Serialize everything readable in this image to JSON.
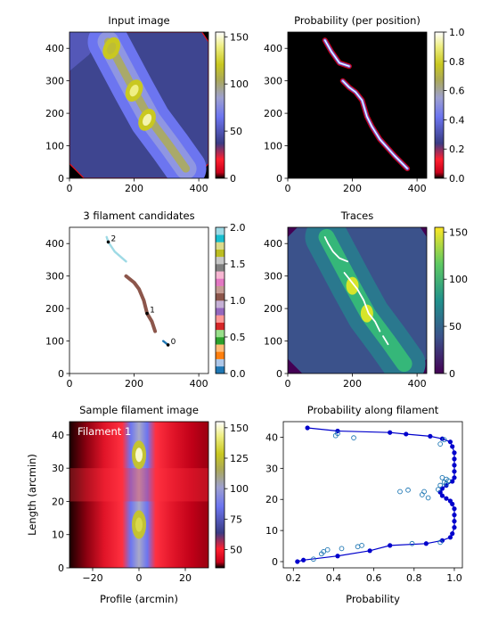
{
  "chart_data": [
    {
      "type": "heatmap",
      "title": "Input image",
      "xlim": [
        0,
        430
      ],
      "ylim": [
        0,
        450
      ],
      "xticks": [
        0,
        200,
        400
      ],
      "yticks": [
        0,
        100,
        200,
        300,
        400
      ],
      "colorbar": {
        "min": 0,
        "max": 155,
        "ticks": [
          0,
          50,
          100,
          150
        ],
        "colormap": "gist_stern"
      },
      "background_value": 0,
      "ridge": [
        [
          120,
          420
        ],
        [
          200,
          270
        ],
        [
          250,
          180
        ],
        [
          310,
          100
        ],
        [
          360,
          30
        ]
      ],
      "peaks": [
        {
          "x": 200,
          "y": 270,
          "value": 140
        },
        {
          "x": 240,
          "y": 180,
          "value": 145
        },
        {
          "x": 130,
          "y": 400,
          "value": 115
        }
      ]
    },
    {
      "type": "heatmap",
      "title": "Probability (per position)",
      "xlim": [
        0,
        430
      ],
      "ylim": [
        0,
        450
      ],
      "xticks": [
        0,
        200,
        400
      ],
      "yticks": [
        0,
        100,
        200,
        300,
        400
      ],
      "colorbar": {
        "min": 0,
        "max": 1,
        "ticks": [
          "0.0",
          "0.2",
          "0.4",
          "0.6",
          "0.8",
          "1.0"
        ],
        "colormap": "gist_stern"
      },
      "background_value": 0,
      "filaments": [
        [
          [
            115,
            425
          ],
          [
            135,
            390
          ],
          [
            160,
            355
          ],
          [
            190,
            345
          ]
        ],
        [
          [
            170,
            300
          ],
          [
            190,
            280
          ],
          [
            210,
            265
          ],
          [
            230,
            240
          ],
          [
            245,
            190
          ],
          [
            260,
            160
          ],
          [
            285,
            120
          ],
          [
            330,
            70
          ],
          [
            370,
            30
          ]
        ]
      ]
    },
    {
      "type": "heatmap",
      "title": "3 filament candidates",
      "xlim": [
        0,
        430
      ],
      "ylim": [
        0,
        450
      ],
      "xticks": [
        0,
        200,
        400
      ],
      "yticks": [
        0,
        100,
        200,
        300,
        400
      ],
      "colorbar": {
        "min": 0,
        "max": 2,
        "ticks": [
          "0.0",
          "0.5",
          "1.0",
          "1.5",
          "2.0"
        ],
        "colormap": "tab20"
      },
      "candidates": [
        {
          "label": "0",
          "color": "#1f77b4",
          "marker": [
            305,
            88
          ],
          "path": [
            [
              290,
              100
            ],
            [
              305,
              88
            ]
          ]
        },
        {
          "label": "1",
          "color": "#8c564b",
          "marker": [
            240,
            185
          ],
          "path": [
            [
              175,
              300
            ],
            [
              200,
              280
            ],
            [
              215,
              260
            ],
            [
              230,
              225
            ],
            [
              240,
              185
            ],
            [
              255,
              160
            ],
            [
              265,
              130
            ]
          ]
        },
        {
          "label": "2",
          "color": "#9edae5",
          "marker": [
            120,
            405
          ],
          "path": [
            [
              115,
              420
            ],
            [
              120,
              405
            ],
            [
              140,
              375
            ],
            [
              175,
              345
            ]
          ]
        }
      ]
    },
    {
      "type": "heatmap",
      "title": "Traces",
      "xlim": [
        0,
        430
      ],
      "ylim": [
        0,
        450
      ],
      "xticks": [
        0,
        200,
        400
      ],
      "yticks": [
        0,
        100,
        200,
        300,
        400
      ],
      "colorbar": {
        "min": 0,
        "max": 155,
        "ticks": [
          0,
          50,
          100,
          150
        ],
        "colormap": "viridis"
      },
      "traces": [
        [
          [
            115,
            420
          ],
          [
            125,
            400
          ],
          [
            140,
            375
          ],
          [
            160,
            355
          ],
          [
            185,
            345
          ]
        ],
        [
          [
            175,
            310
          ],
          [
            195,
            285
          ],
          [
            215,
            260
          ],
          [
            235,
            225
          ],
          [
            250,
            185
          ],
          [
            270,
            160
          ],
          [
            285,
            130
          ]
        ],
        [
          [
            295,
            115
          ],
          [
            310,
            90
          ]
        ]
      ]
    },
    {
      "type": "heatmap",
      "title": "Sample filament image",
      "xlabel": "Profile (arcmin)",
      "ylabel": "Length (arcmin)",
      "xlim": [
        -30,
        30
      ],
      "ylim": [
        0,
        44
      ],
      "xticks": [
        -20,
        0,
        20
      ],
      "yticks": [
        0,
        10,
        20,
        30,
        40
      ],
      "colorbar": {
        "min": 35,
        "max": 155,
        "ticks": [
          50,
          75,
          100,
          125,
          150
        ],
        "colormap": "gist_stern"
      },
      "annotation": "Filament 1",
      "bright_spots": [
        {
          "x": 0,
          "y": 34,
          "value": 150
        },
        {
          "x": 0,
          "y": 13,
          "value": 135
        }
      ]
    },
    {
      "type": "scatter",
      "title": "Probability along filament",
      "xlabel": "Probability",
      "ylabel": "",
      "xlim": [
        0.15,
        1.04
      ],
      "ylim": [
        -2,
        45
      ],
      "xticks": [
        "0.2",
        "0.4",
        "0.6",
        "0.8",
        "1.0"
      ],
      "yticks": [
        0,
        10,
        20,
        30,
        40
      ],
      "series": [
        {
          "style": "line-markers",
          "color": "#0000cc",
          "x": [
            0.22,
            0.25,
            0.42,
            0.58,
            0.68,
            0.86,
            0.94,
            0.98,
            0.99,
            1.0,
            1.0,
            1.0,
            1.0,
            0.99,
            0.98,
            0.96,
            0.94,
            0.93,
            0.94,
            0.96,
            0.99,
            1.0,
            1.0,
            1.0,
            1.0,
            1.0,
            0.99,
            0.98,
            0.94,
            0.88,
            0.76,
            0.68,
            0.42,
            0.27
          ],
          "y": [
            0,
            0.5,
            1.8,
            3.5,
            5.2,
            5.8,
            6.8,
            7.8,
            9,
            11,
            13,
            15,
            17,
            18.5,
            19.5,
            20.3,
            21.2,
            22.3,
            23.5,
            24.5,
            25.8,
            27,
            29,
            31,
            33,
            35,
            37,
            38.5,
            39.5,
            40.3,
            41,
            41.5,
            42,
            43
          ]
        },
        {
          "style": "open-circles",
          "color": "#1f77b4",
          "x": [
            0.3,
            0.34,
            0.35,
            0.37,
            0.44,
            0.52,
            0.54,
            0.79,
            0.93,
            0.73,
            0.77,
            0.84,
            0.85,
            0.87,
            0.92,
            0.93,
            0.95,
            0.96,
            0.94,
            0.97,
            0.96,
            0.41,
            0.42,
            0.5,
            0.95,
            0.93
          ],
          "y": [
            0.8,
            2.5,
            3.2,
            3.8,
            4.2,
            4.8,
            5.2,
            5.8,
            6.2,
            22.5,
            23,
            21.5,
            22.5,
            20.5,
            23.2,
            24.5,
            25.5,
            26.5,
            27,
            26,
            25,
            40.5,
            41.2,
            39.8,
            39.2,
            37.8
          ]
        }
      ]
    }
  ]
}
